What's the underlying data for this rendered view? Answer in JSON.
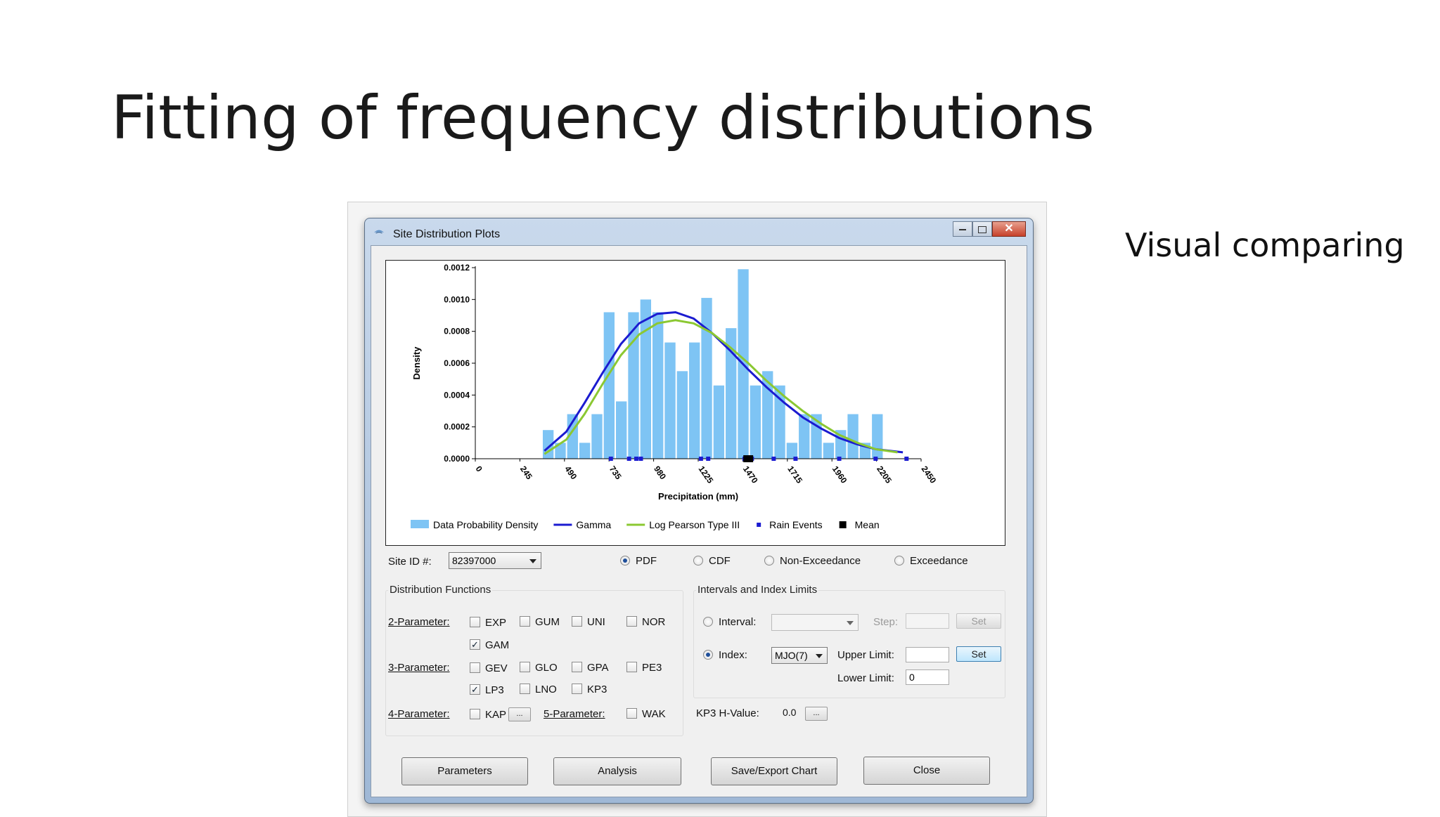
{
  "slide": {
    "title": "Fitting of frequency distributions",
    "side_note": "Visual comparing"
  },
  "window": {
    "title": "Site Distribution Plots",
    "close_glyph": "✕"
  },
  "chart_data": {
    "type": "bar",
    "xlabel": "Precipitation (mm)",
    "ylabel": "Density",
    "xlim": [
      0,
      2450
    ],
    "ylim": [
      0,
      0.0012
    ],
    "x_ticks": [
      "0",
      "245",
      "490",
      "735",
      "980",
      "1225",
      "1470",
      "1715",
      "1960",
      "2205",
      "2450"
    ],
    "y_ticks": [
      "0.0000",
      "0.0002",
      "0.0004",
      "0.0006",
      "0.0008",
      "0.0010",
      "0.0012"
    ],
    "bin_width": 67,
    "bin_starts": [
      367,
      434,
      501,
      568,
      635,
      702,
      769,
      836,
      903,
      970,
      1037,
      1104,
      1171,
      1238,
      1305,
      1372,
      1439,
      1506,
      1573,
      1640,
      1707,
      1774,
      1841,
      1908,
      1975,
      2042,
      2109,
      2176,
      2243
    ],
    "values": [
      0.00018,
      0.0001,
      0.00028,
      0.0001,
      0.00028,
      0.00092,
      0.00036,
      0.00092,
      0.001,
      0.00092,
      0.00073,
      0.00055,
      0.00073,
      0.00101,
      0.00046,
      0.00082,
      0.00119,
      0.00046,
      0.00055,
      0.00046,
      0.0001,
      0.00028,
      0.00028,
      0.0001,
      0.00018,
      0.00028,
      0.0001,
      0.00028,
      0.0
    ],
    "series": [
      {
        "name": "Gamma",
        "color": "#1b1bd0",
        "x": [
          380,
          500,
          600,
          700,
          800,
          900,
          1000,
          1100,
          1200,
          1300,
          1400,
          1500,
          1600,
          1700,
          1800,
          1900,
          2000,
          2100,
          2200,
          2350
        ],
        "y": [
          5e-05,
          0.00017,
          0.00035,
          0.00054,
          0.00072,
          0.00085,
          0.00091,
          0.00092,
          0.00088,
          0.00079,
          0.00068,
          0.00056,
          0.00045,
          0.00035,
          0.00026,
          0.00019,
          0.00013,
          9e-05,
          6e-05,
          4e-05
        ]
      },
      {
        "name": "Log Pearson Type III",
        "color": "#8bc832",
        "x": [
          380,
          500,
          600,
          700,
          800,
          900,
          1000,
          1100,
          1200,
          1300,
          1400,
          1500,
          1600,
          1700,
          1800,
          1900,
          2000,
          2100,
          2200,
          2320
        ],
        "y": [
          3e-05,
          0.00012,
          0.00028,
          0.00047,
          0.00065,
          0.00078,
          0.00085,
          0.00087,
          0.00085,
          0.00079,
          0.0007,
          0.0006,
          0.00049,
          0.00039,
          0.0003,
          0.00022,
          0.00015,
          0.0001,
          6e-05,
          4e-05
        ]
      }
    ],
    "rain_events": [
      745,
      845,
      885,
      910,
      1240,
      1280,
      1480,
      1500,
      1520,
      1640,
      1760,
      2000,
      2200,
      2370
    ],
    "mean": 1500,
    "legend": [
      {
        "label": "Data Probability Density",
        "kind": "bar",
        "color": "#7ec4f4"
      },
      {
        "label": "Gamma",
        "kind": "line",
        "color": "#1b1bd0"
      },
      {
        "label": "Log Pearson Type III",
        "kind": "line",
        "color": "#8bc832"
      },
      {
        "label": "Rain Events",
        "kind": "dot",
        "color": "#1b1bd0"
      },
      {
        "label": "Mean",
        "kind": "square",
        "color": "#000000"
      }
    ],
    "legend_position": "bottom"
  },
  "controls": {
    "site_label": "Site ID #:",
    "site_value": "82397000",
    "plot_types": [
      "PDF",
      "CDF",
      "Non-Exceedance",
      "Exceedance"
    ],
    "selected_plot_type": "PDF"
  },
  "dist": {
    "title": "Distribution Functions",
    "p2": "2-Parameter:",
    "p3": "3-Parameter:",
    "p4": "4-Parameter:",
    "p5": "5-Parameter:",
    "exp": "EXP",
    "gum": "GUM",
    "uni": "UNI",
    "nor": "NOR",
    "gam": "GAM",
    "gev": "GEV",
    "glo": "GLO",
    "gpa": "GPA",
    "pe3": "PE3",
    "lp3": "LP3",
    "lno": "LNO",
    "kp3": "KP3",
    "kap": "KAP",
    "wak": "WAK",
    "ellipsis": "...",
    "check_glyph": "✓"
  },
  "intervals": {
    "title": "Intervals and Index Limits",
    "interval_label": "Interval:",
    "step_label": "Step:",
    "set_label": "Set",
    "index_label": "Index:",
    "index_value": "MJO(7)",
    "upper_label": "Upper Limit:",
    "lower_label": "Lower Limit:",
    "lower_value": "0"
  },
  "kp3": {
    "label": "KP3 H-Value:",
    "value": "0.0",
    "ellipsis": "..."
  },
  "buttons": {
    "parameters": "Parameters",
    "analysis": "Analysis",
    "save": "Save/Export Chart",
    "close": "Close"
  }
}
